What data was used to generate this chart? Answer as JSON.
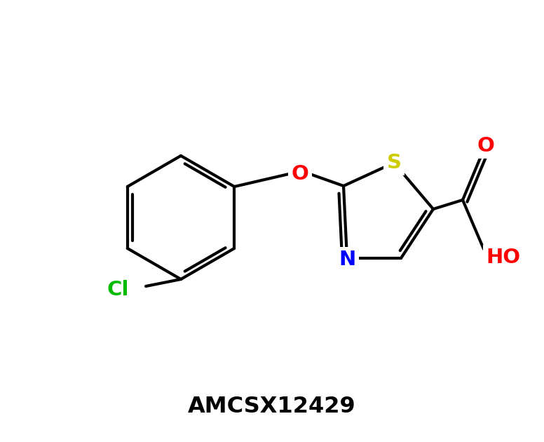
{
  "title": "AMCSX12429",
  "background_color": "#ffffff",
  "bond_color": "#000000",
  "bond_width": 3.0,
  "figsize": [
    7.76,
    6.3
  ],
  "dpi": 100,
  "atom_colors": {
    "O": "#ff0000",
    "S": "#cccc00",
    "N": "#0000ff",
    "Cl": "#00bb00",
    "C": "#000000"
  },
  "label_fontsize": 21
}
